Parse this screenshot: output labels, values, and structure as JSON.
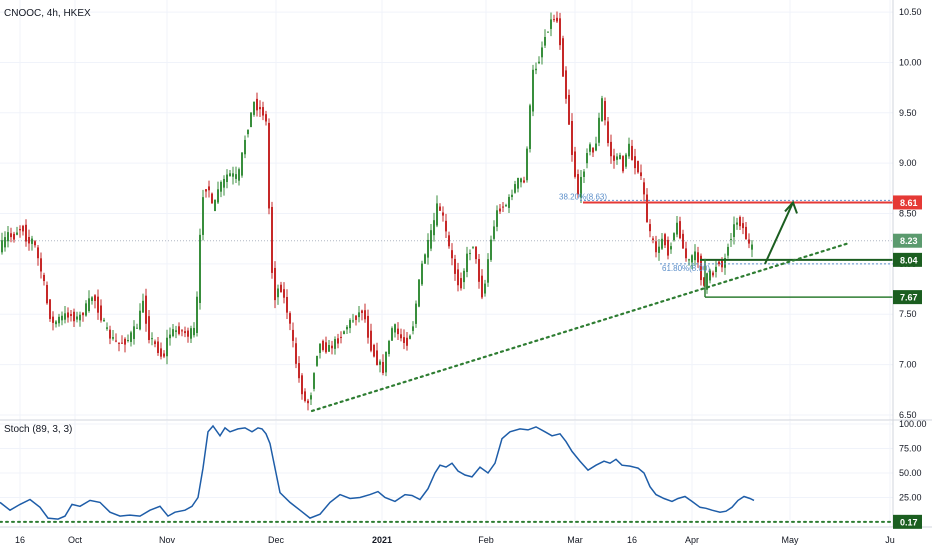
{
  "header": {
    "symbol_label": "CNOOC, 4h, HKEX"
  },
  "chart_data": [
    {
      "type": "candlestick",
      "ylim": [
        6.45,
        10.62
      ],
      "y_ticks": [
        "10.50",
        "10.00",
        "9.50",
        "9.00",
        "8.50",
        "8.00",
        "7.50",
        "7.00",
        "6.50"
      ],
      "x_ticks": [
        "16",
        "Oct",
        "Nov",
        "Dec",
        "2021",
        "Feb",
        "Mar",
        "16",
        "Apr",
        "May",
        "Ju"
      ],
      "colors": {
        "up": "#26a69a",
        "up_bar": "#388e3c",
        "down": "#c62828",
        "grid": "#f0f3fa"
      },
      "price_path": [
        [
          0,
          8.15
        ],
        [
          5,
          8.2
        ],
        [
          10,
          8.3
        ],
        [
          15,
          8.25
        ],
        [
          20,
          8.35
        ],
        [
          25,
          8.35
        ],
        [
          30,
          8.2
        ],
        [
          35,
          8.25
        ],
        [
          40,
          8.05
        ],
        [
          45,
          7.85
        ],
        [
          50,
          7.55
        ],
        [
          55,
          7.4
        ],
        [
          60,
          7.45
        ],
        [
          70,
          7.5
        ],
        [
          80,
          7.45
        ],
        [
          90,
          7.6
        ],
        [
          95,
          7.7
        ],
        [
          100,
          7.55
        ],
        [
          110,
          7.3
        ],
        [
          120,
          7.2
        ],
        [
          130,
          7.25
        ],
        [
          140,
          7.4
        ],
        [
          145,
          7.65
        ],
        [
          150,
          7.3
        ],
        [
          160,
          7.15
        ],
        [
          165,
          7.05
        ],
        [
          170,
          7.3
        ],
        [
          180,
          7.35
        ],
        [
          190,
          7.3
        ],
        [
          198,
          7.35
        ],
        [
          200,
          7.95
        ],
        [
          205,
          8.7
        ],
        [
          210,
          8.8
        ],
        [
          215,
          8.5
        ],
        [
          220,
          8.75
        ],
        [
          225,
          8.8
        ],
        [
          230,
          8.9
        ],
        [
          240,
          8.85
        ],
        [
          248,
          9.3
        ],
        [
          252,
          9.45
        ],
        [
          256,
          9.6
        ],
        [
          260,
          9.55
        ],
        [
          265,
          9.5
        ],
        [
          268,
          9.4
        ],
        [
          270,
          8.9
        ],
        [
          272,
          8.2
        ],
        [
          276,
          7.65
        ],
        [
          282,
          7.8
        ],
        [
          290,
          7.5
        ],
        [
          295,
          7.2
        ],
        [
          300,
          6.9
        ],
        [
          305,
          6.7
        ],
        [
          308,
          6.6
        ],
        [
          312,
          6.65
        ],
        [
          318,
          7.1
        ],
        [
          322,
          7.2
        ],
        [
          330,
          7.15
        ],
        [
          340,
          7.25
        ],
        [
          350,
          7.4
        ],
        [
          360,
          7.5
        ],
        [
          365,
          7.55
        ],
        [
          372,
          7.2
        ],
        [
          378,
          7.05
        ],
        [
          385,
          6.95
        ],
        [
          390,
          7.2
        ],
        [
          395,
          7.4
        ],
        [
          400,
          7.3
        ],
        [
          408,
          7.2
        ],
        [
          415,
          7.4
        ],
        [
          420,
          7.75
        ],
        [
          425,
          8.05
        ],
        [
          432,
          8.25
        ],
        [
          440,
          8.6
        ],
        [
          445,
          8.45
        ],
        [
          450,
          8.2
        ],
        [
          456,
          7.95
        ],
        [
          462,
          7.75
        ],
        [
          468,
          8.05
        ],
        [
          475,
          8.2
        ],
        [
          480,
          7.9
        ],
        [
          485,
          7.65
        ],
        [
          490,
          8.05
        ],
        [
          495,
          8.35
        ],
        [
          500,
          8.55
        ],
        [
          510,
          8.6
        ],
        [
          515,
          8.75
        ],
        [
          522,
          8.85
        ],
        [
          526,
          8.8
        ],
        [
          530,
          9.3
        ],
        [
          535,
          9.9
        ],
        [
          540,
          10.0
        ],
        [
          545,
          10.2
        ],
        [
          550,
          10.35
        ],
        [
          555,
          10.45
        ],
        [
          560,
          10.4
        ],
        [
          565,
          9.9
        ],
        [
          570,
          9.5
        ],
        [
          575,
          9.0
        ],
        [
          580,
          8.7
        ],
        [
          585,
          8.9
        ],
        [
          590,
          9.2
        ],
        [
          595,
          9.1
        ],
        [
          600,
          9.3
        ],
        [
          603,
          9.7
        ],
        [
          610,
          9.2
        ],
        [
          615,
          9.0
        ],
        [
          620,
          9.1
        ],
        [
          625,
          8.95
        ],
        [
          630,
          9.2
        ],
        [
          635,
          9.0
        ],
        [
          640,
          8.95
        ],
        [
          645,
          8.75
        ],
        [
          650,
          8.35
        ],
        [
          655,
          8.2
        ],
        [
          660,
          8.1
        ],
        [
          665,
          8.3
        ],
        [
          670,
          8.1
        ],
        [
          675,
          8.3
        ],
        [
          680,
          8.4
        ],
        [
          685,
          8.15
        ],
        [
          690,
          8.0
        ],
        [
          695,
          8.1
        ],
        [
          700,
          8.05
        ],
        [
          705,
          7.75
        ],
        [
          710,
          7.9
        ],
        [
          715,
          7.9
        ],
        [
          720,
          8.05
        ],
        [
          725,
          7.95
        ],
        [
          730,
          8.2
        ],
        [
          735,
          8.35
        ],
        [
          740,
          8.45
        ],
        [
          745,
          8.35
        ],
        [
          750,
          8.2
        ],
        [
          753,
          8.15
        ]
      ],
      "annotations": {
        "dotted_level": "8.23",
        "fib_38": "38.20%(8.63)",
        "fib_61": "61.80%(8.00)",
        "levels": [
          {
            "label": "8.61",
            "value": 8.61,
            "color": "#e53935"
          },
          {
            "label": "8.23",
            "value": 8.23,
            "color": "#5b9a6e"
          },
          {
            "label": "8.04",
            "value": 8.04,
            "color": "#1b5e20"
          },
          {
            "label": "7.67",
            "value": 7.67,
            "color": "#1b5e20"
          }
        ],
        "trendline": {
          "from": [
            312,
            6.54
          ],
          "to": [
            850,
            8.21
          ]
        },
        "arrow": {
          "from": [
            765,
            8.0
          ],
          "to": [
            793,
            8.61
          ]
        }
      }
    },
    {
      "type": "line",
      "title": "Stoch (89, 3, 3)",
      "ylim": [
        0,
        100
      ],
      "y_ticks": [
        "100.00",
        "75.00",
        "50.00",
        "25.00"
      ],
      "current_label": "0.17",
      "color": "#1e5da8",
      "series_path": [
        [
          0,
          20
        ],
        [
          10,
          12
        ],
        [
          20,
          18
        ],
        [
          30,
          23
        ],
        [
          40,
          15
        ],
        [
          48,
          4
        ],
        [
          58,
          3
        ],
        [
          65,
          6
        ],
        [
          72,
          18
        ],
        [
          80,
          16
        ],
        [
          90,
          22
        ],
        [
          100,
          20
        ],
        [
          110,
          10
        ],
        [
          120,
          6
        ],
        [
          130,
          7
        ],
        [
          140,
          6
        ],
        [
          150,
          12
        ],
        [
          160,
          16
        ],
        [
          168,
          6
        ],
        [
          175,
          10
        ],
        [
          185,
          12
        ],
        [
          192,
          16
        ],
        [
          198,
          25
        ],
        [
          203,
          55
        ],
        [
          208,
          92
        ],
        [
          213,
          98
        ],
        [
          220,
          88
        ],
        [
          225,
          96
        ],
        [
          230,
          92
        ],
        [
          238,
          95
        ],
        [
          245,
          96
        ],
        [
          252,
          92
        ],
        [
          258,
          96
        ],
        [
          262,
          95
        ],
        [
          266,
          90
        ],
        [
          270,
          80
        ],
        [
          275,
          55
        ],
        [
          280,
          30
        ],
        [
          290,
          20
        ],
        [
          300,
          12
        ],
        [
          310,
          4
        ],
        [
          320,
          8
        ],
        [
          330,
          20
        ],
        [
          340,
          28
        ],
        [
          350,
          24
        ],
        [
          360,
          25
        ],
        [
          370,
          28
        ],
        [
          378,
          31
        ],
        [
          385,
          25
        ],
        [
          395,
          21
        ],
        [
          405,
          28
        ],
        [
          412,
          27
        ],
        [
          420,
          23
        ],
        [
          428,
          34
        ],
        [
          435,
          50
        ],
        [
          440,
          58
        ],
        [
          446,
          56
        ],
        [
          452,
          60
        ],
        [
          458,
          52
        ],
        [
          465,
          48
        ],
        [
          472,
          46
        ],
        [
          480,
          56
        ],
        [
          488,
          50
        ],
        [
          495,
          60
        ],
        [
          502,
          85
        ],
        [
          510,
          92
        ],
        [
          520,
          95
        ],
        [
          528,
          94
        ],
        [
          536,
          97
        ],
        [
          545,
          92
        ],
        [
          552,
          88
        ],
        [
          560,
          90
        ],
        [
          566,
          82
        ],
        [
          572,
          72
        ],
        [
          580,
          62
        ],
        [
          588,
          53
        ],
        [
          596,
          58
        ],
        [
          604,
          62
        ],
        [
          610,
          60
        ],
        [
          616,
          64
        ],
        [
          622,
          58
        ],
        [
          630,
          57
        ],
        [
          638,
          55
        ],
        [
          644,
          50
        ],
        [
          650,
          36
        ],
        [
          656,
          28
        ],
        [
          664,
          24
        ],
        [
          672,
          21
        ],
        [
          678,
          24
        ],
        [
          685,
          26
        ],
        [
          692,
          21
        ],
        [
          700,
          15
        ],
        [
          706,
          14
        ],
        [
          712,
          12
        ],
        [
          720,
          10
        ],
        [
          726,
          11
        ],
        [
          732,
          15
        ],
        [
          738,
          22
        ],
        [
          744,
          26
        ],
        [
          750,
          24
        ],
        [
          754,
          22
        ]
      ]
    }
  ]
}
